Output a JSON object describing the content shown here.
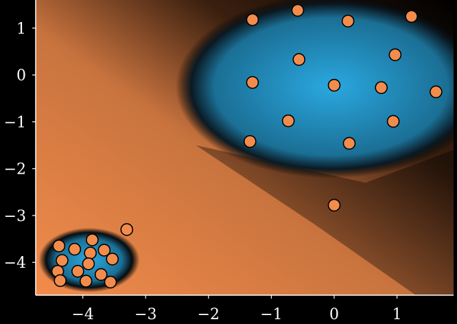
{
  "chart_data": {
    "type": "scatter",
    "title": "",
    "xlabel": "",
    "ylabel": "",
    "xlim": [
      -4.75,
      1.9
    ],
    "ylim": [
      -4.7,
      1.6
    ],
    "x_ticks": [
      -4,
      -3,
      -2,
      -1,
      0,
      1
    ],
    "y_ticks": [
      1,
      0,
      -1,
      -2,
      -3,
      -4
    ],
    "x_tick_labels": [
      "−4",
      "−3",
      "−2",
      "−1",
      "0",
      "1"
    ],
    "y_tick_labels": [
      "1",
      "0",
      "−1",
      "−2",
      "−3",
      "−4"
    ],
    "grid": false,
    "colors": {
      "background_far": "#f28c4c",
      "boundary": "#000000",
      "region_inside": "#2aa8e0",
      "point_fill": "#f28c4c",
      "point_edge": "#000000",
      "axis": "#ffffff"
    },
    "regions": [
      {
        "center": [
          -0.05,
          -0.25
        ],
        "radius": [
          2.15,
          1.7
        ],
        "label": ""
      },
      {
        "center": [
          -3.9,
          -3.95
        ],
        "radius": [
          0.7,
          0.6
        ],
        "label": ""
      }
    ],
    "series": [
      {
        "name": "",
        "points": [
          [
            -1.3,
            1.18
          ],
          [
            -0.58,
            1.38
          ],
          [
            0.22,
            1.15
          ],
          [
            1.23,
            1.25
          ],
          [
            -0.56,
            0.33
          ],
          [
            0.97,
            0.43
          ],
          [
            -1.3,
            -0.16
          ],
          [
            0.0,
            -0.22
          ],
          [
            0.75,
            -0.27
          ],
          [
            1.62,
            -0.36
          ],
          [
            -0.73,
            -0.98
          ],
          [
            0.94,
            -0.99
          ],
          [
            -1.34,
            -1.42
          ],
          [
            0.24,
            -1.46
          ],
          [
            0.0,
            -2.78
          ],
          [
            -3.3,
            -3.3
          ],
          [
            -3.85,
            -3.52
          ],
          [
            -4.38,
            -3.65
          ],
          [
            -4.13,
            -3.72
          ],
          [
            -3.66,
            -3.74
          ],
          [
            -3.88,
            -3.8
          ],
          [
            -4.33,
            -3.96
          ],
          [
            -3.91,
            -4.03
          ],
          [
            -3.53,
            -3.93
          ],
          [
            -4.4,
            -4.19
          ],
          [
            -4.08,
            -4.19
          ],
          [
            -3.71,
            -4.26
          ],
          [
            -4.36,
            -4.39
          ],
          [
            -3.95,
            -4.4
          ],
          [
            -3.56,
            -4.42
          ]
        ]
      }
    ]
  }
}
